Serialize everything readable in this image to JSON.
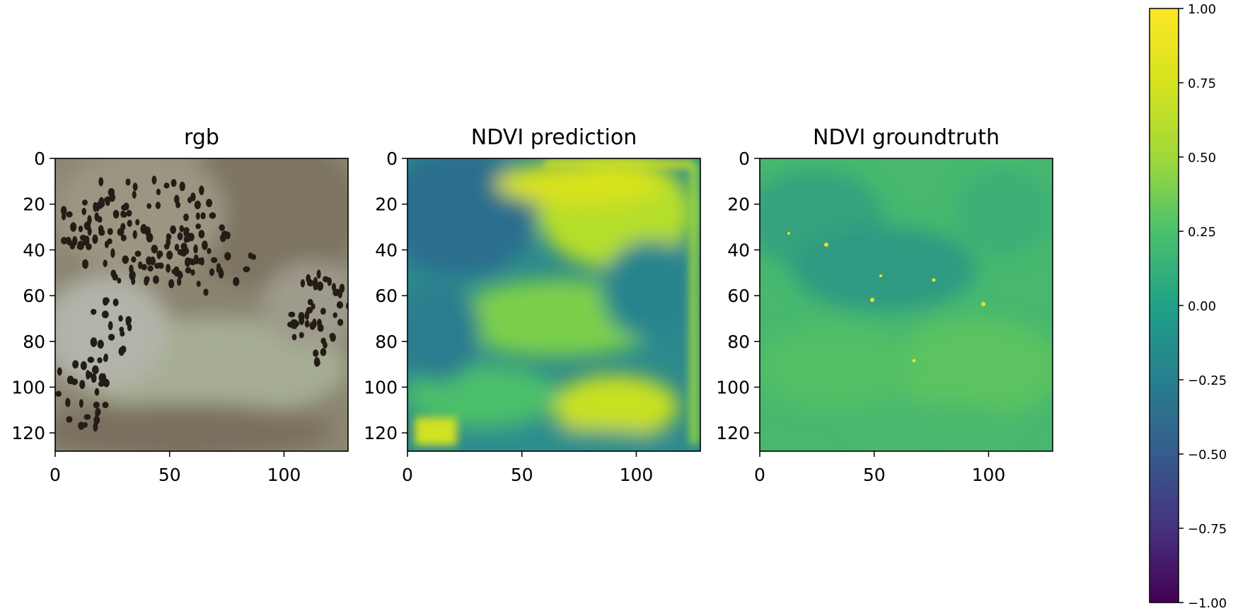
{
  "chart_data": [
    {
      "type": "heatmap",
      "title": "rgb",
      "image_kind": "rgb satellite image",
      "x_ticks": [
        0,
        50,
        100
      ],
      "y_ticks": [
        0,
        20,
        40,
        60,
        80,
        100,
        120
      ],
      "xlim": [
        0,
        128
      ],
      "ylim": [
        128,
        0
      ]
    },
    {
      "type": "heatmap",
      "title": "NDVI prediction",
      "x_ticks": [
        0,
        50,
        100
      ],
      "y_ticks": [
        0,
        20,
        40,
        60,
        80,
        100,
        120
      ],
      "xlim": [
        0,
        128
      ],
      "ylim": [
        128,
        0
      ],
      "value_range": [
        -1.0,
        1.0
      ]
    },
    {
      "type": "heatmap",
      "title": "NDVI groundtruth",
      "x_ticks": [
        0,
        50,
        100
      ],
      "y_ticks": [
        0,
        20,
        40,
        60,
        80,
        100,
        120
      ],
      "xlim": [
        0,
        128
      ],
      "ylim": [
        128,
        0
      ],
      "value_range": [
        -1.0,
        1.0
      ]
    }
  ],
  "colorbar": {
    "colormap": "viridis",
    "range": [
      -1.0,
      1.0
    ],
    "tick_labels": [
      "1.00",
      "0.75",
      "0.50",
      "0.25",
      "0.00",
      "−0.25",
      "−0.50",
      "−0.75",
      "−1.00"
    ],
    "tick_values": [
      1.0,
      0.75,
      0.5,
      0.25,
      0.0,
      -0.25,
      -0.5,
      -0.75,
      -1.0
    ]
  },
  "colors": {
    "viridis_low": "#440154",
    "viridis_mid": "#21918c",
    "viridis_high": "#fde725"
  }
}
